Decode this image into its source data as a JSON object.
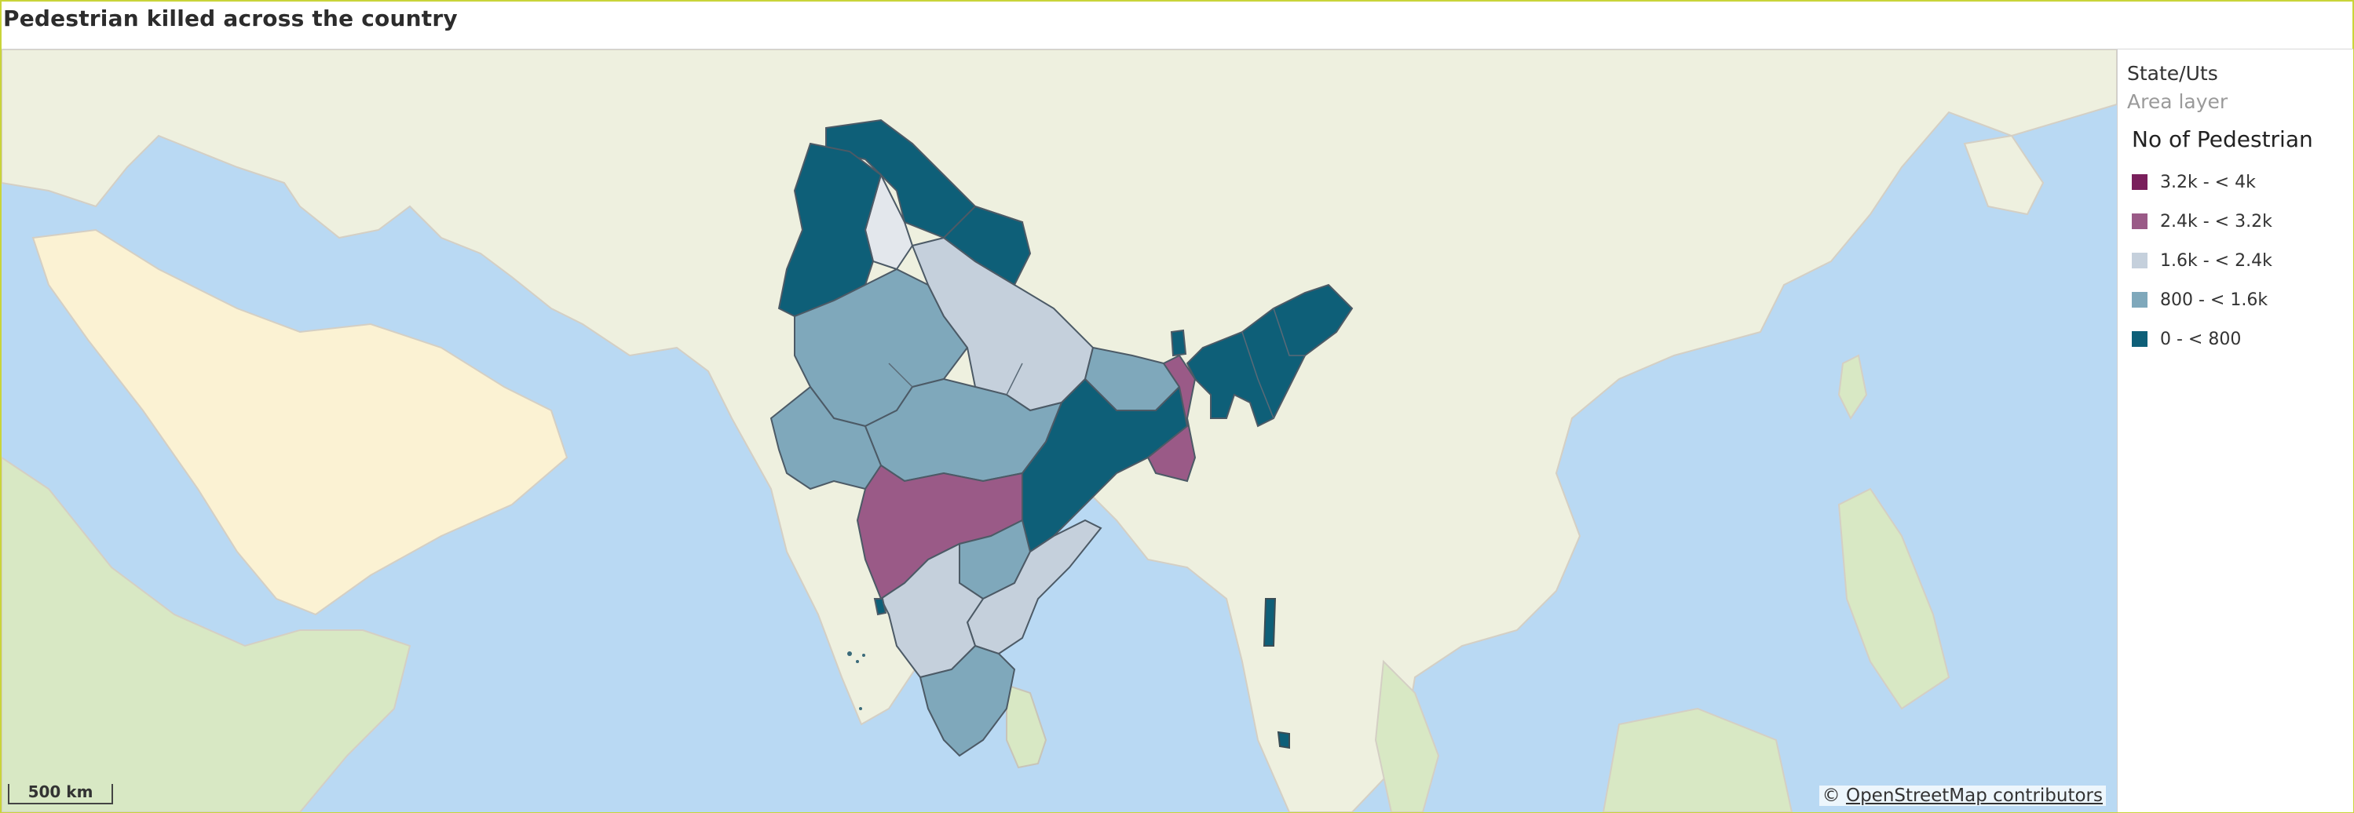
{
  "title": "Pedestrian killed across the country",
  "legend": {
    "layer_name": "State/Uts",
    "layer_type": "Area layer",
    "measure": "No of Pedestrian",
    "bins": [
      {
        "label": "3.2k - < 4k",
        "color": "#7a1f5c"
      },
      {
        "label": "2.4k - < 3.2k",
        "color": "#9a5a87"
      },
      {
        "label": "1.6k - < 2.4k",
        "color": "#c5d0dc"
      },
      {
        "label": "800 - < 1.6k",
        "color": "#7fa8bb"
      },
      {
        "label": "0 - < 800",
        "color": "#0e5f78"
      }
    ]
  },
  "map": {
    "scale_label": "500 km",
    "attribution_prefix": "©",
    "attribution_link": "OpenStreetMap contributors",
    "colors": {
      "sea": "#b9d9f3",
      "land": "#eef0df",
      "desert": "#fbf2d3",
      "forest": "#d8e8c4",
      "border": "#a79bb3"
    }
  }
}
